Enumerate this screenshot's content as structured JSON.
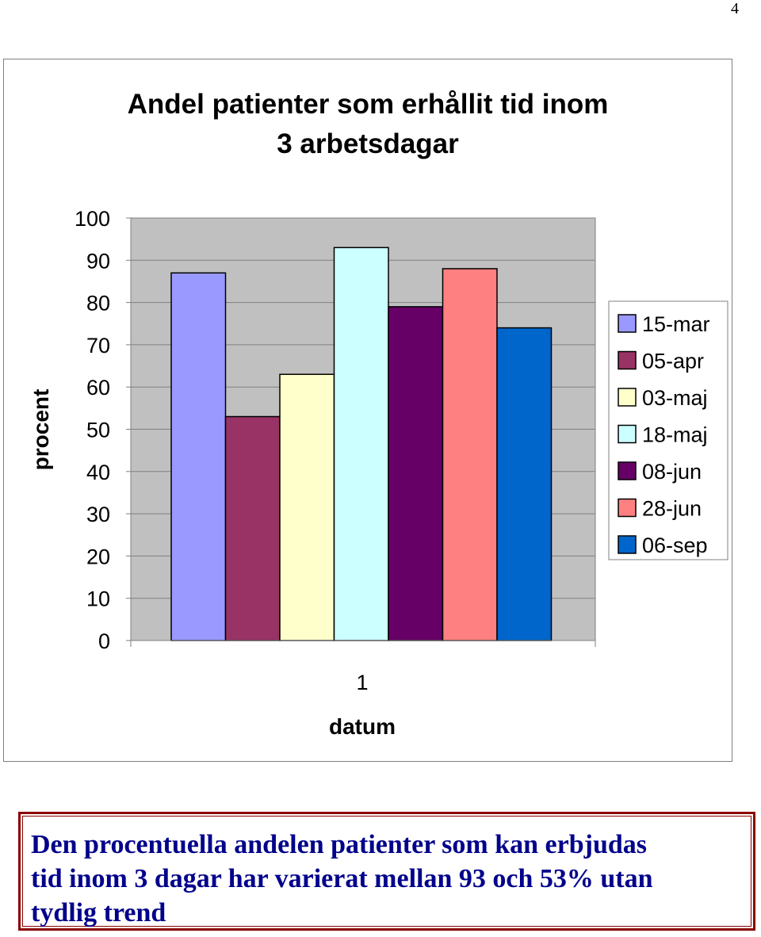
{
  "page_number": "4",
  "chart_data": {
    "type": "bar",
    "title_line1": "Andel patienter som erhållit tid inom",
    "title_line2": "3 arbetsdagar",
    "xlabel": "datum",
    "ylabel": "procent",
    "categories": [
      "1"
    ],
    "ylim": [
      0,
      100
    ],
    "y_ticks": [
      0,
      10,
      20,
      30,
      40,
      50,
      60,
      70,
      80,
      90,
      100
    ],
    "grid": true,
    "legend_position": "right",
    "series": [
      {
        "name": "15-mar",
        "values": [
          87
        ],
        "color": "#9999ff"
      },
      {
        "name": "05-apr",
        "values": [
          53
        ],
        "color": "#993366"
      },
      {
        "name": "03-maj",
        "values": [
          63
        ],
        "color": "#ffffcc"
      },
      {
        "name": "18-maj",
        "values": [
          93
        ],
        "color": "#ccffff"
      },
      {
        "name": "08-jun",
        "values": [
          79
        ],
        "color": "#660066"
      },
      {
        "name": "28-jun",
        "values": [
          88
        ],
        "color": "#ff8080"
      },
      {
        "name": "06-sep",
        "values": [
          74
        ],
        "color": "#0066cc"
      }
    ],
    "plot_background": "#c0c0c0"
  },
  "caption": {
    "line1": "Den procentuella andelen patienter som kan erbjudas",
    "line2": "tid inom 3 dagar har varierat mellan 93 och 53% utan",
    "line3": "tydlig trend"
  }
}
